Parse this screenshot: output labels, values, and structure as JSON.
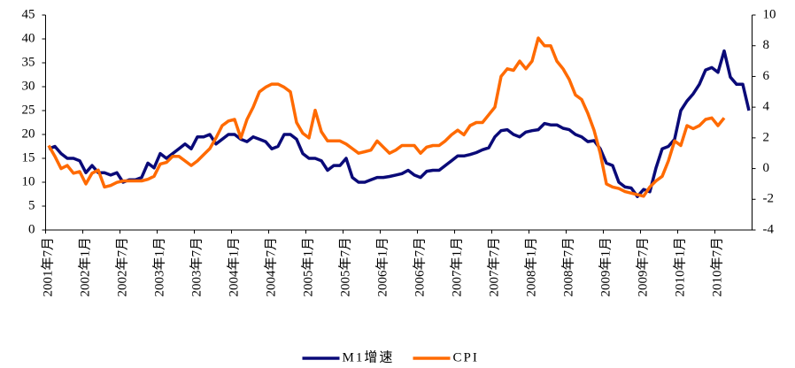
{
  "chart_data": {
    "type": "line",
    "categories": [
      "2001年7月",
      null,
      null,
      null,
      null,
      null,
      "2002年1月",
      null,
      null,
      null,
      null,
      null,
      "2002年7月",
      null,
      null,
      null,
      null,
      null,
      "2003年1月",
      null,
      null,
      null,
      null,
      null,
      "2003年7月",
      null,
      null,
      null,
      null,
      null,
      "2004年1月",
      null,
      null,
      null,
      null,
      null,
      "2004年7月",
      null,
      null,
      null,
      null,
      null,
      "2005年1月",
      null,
      null,
      null,
      null,
      null,
      "2005年7月",
      null,
      null,
      null,
      null,
      null,
      "2006年1月",
      null,
      null,
      null,
      null,
      null,
      "2006年7月",
      null,
      null,
      null,
      null,
      null,
      "2007年1月",
      null,
      null,
      null,
      null,
      null,
      "2007年7月",
      null,
      null,
      null,
      null,
      null,
      "2008年1月",
      null,
      null,
      null,
      null,
      null,
      "2008年7月",
      null,
      null,
      null,
      null,
      null,
      "2009年1月",
      null,
      null,
      null,
      null,
      null,
      "2009年7月",
      null,
      null,
      null,
      null,
      null,
      "2010年1月",
      null,
      null,
      null,
      null,
      null,
      "2010年7月",
      null,
      null,
      null,
      null,
      null
    ],
    "series": [
      {
        "name": "M1增速",
        "color": "#0a0a78",
        "values": [
          17,
          17.5,
          16,
          15,
          15,
          14.5,
          12,
          13.5,
          12,
          12,
          11.5,
          12,
          10,
          10.5,
          10.5,
          11,
          14,
          13,
          16,
          15,
          16,
          17,
          18,
          17,
          19.5,
          19.5,
          20,
          18,
          19,
          20,
          20,
          19,
          18.5,
          19.5,
          19,
          18.5,
          17,
          17.5,
          20,
          20,
          19,
          16,
          15,
          15,
          14.5,
          12.5,
          13.5,
          13.5,
          15,
          11,
          10,
          10,
          10.5,
          11,
          11,
          11.2,
          11.5,
          11.8,
          12.5,
          11.5,
          11,
          12.3,
          12.5,
          12.5,
          13.5,
          14.5,
          15.5,
          15.5,
          15.8,
          16.2,
          16.8,
          17.2,
          19.5,
          20.8,
          21,
          20,
          19.5,
          20.5,
          20.8,
          21,
          22.3,
          22,
          22,
          21.3,
          21,
          20,
          19.5,
          18.5,
          18.7,
          17,
          14,
          13.5,
          10,
          9,
          8.8,
          7,
          8.5,
          8,
          13,
          17,
          17.5,
          19,
          25,
          27,
          28.5,
          30.5,
          33.5,
          34,
          33,
          37.5,
          32,
          30.5,
          30.5,
          25
        ]
      },
      {
        "name": "CPI",
        "color": "#ff6a00",
        "axis": "y2",
        "values": [
          1.5,
          0.8,
          0,
          0.2,
          -0.3,
          -0.2,
          -1.0,
          -0.3,
          -0.1,
          -1.2,
          -1.1,
          -0.9,
          -0.8,
          -0.8,
          -0.8,
          -0.8,
          -0.7,
          -0.5,
          0.3,
          0.4,
          0.8,
          0.8,
          0.5,
          0.2,
          0.5,
          0.9,
          1.3,
          2.0,
          2.8,
          3.1,
          3.2,
          2.0,
          3.2,
          4.0,
          5.0,
          5.3,
          5.5,
          5.5,
          5.3,
          5.0,
          3.0,
          2.3,
          2.0,
          3.8,
          2.4,
          1.8,
          1.8,
          1.8,
          1.6,
          1.3,
          1.0,
          1.1,
          1.2,
          1.8,
          1.4,
          1.0,
          1.2,
          1.5,
          1.5,
          1.5,
          1.0,
          1.4,
          1.5,
          1.5,
          1.8,
          2.2,
          2.5,
          2.2,
          2.8,
          3.0,
          3.0,
          3.5,
          4.0,
          6.0,
          6.5,
          6.4,
          7.0,
          6.5,
          7.0,
          8.5,
          8.0,
          8.0,
          7.0,
          6.5,
          5.8,
          4.8,
          4.5,
          3.6,
          2.5,
          1.0,
          -1.0,
          -1.2,
          -1.3,
          -1.5,
          -1.6,
          -1.7,
          -1.8,
          -1.2,
          -0.8,
          -0.5,
          0.5,
          1.8,
          1.5,
          2.8,
          2.6,
          2.8,
          3.2,
          3.3,
          2.8,
          3.3,
          null,
          null,
          null,
          null
        ]
      }
    ],
    "ylim": [
      0,
      45
    ],
    "yticks": [
      0,
      5,
      10,
      15,
      20,
      25,
      30,
      35,
      40,
      45
    ],
    "y2lim": [
      -4,
      10
    ],
    "y2ticks": [
      -4,
      -2,
      0,
      2,
      4,
      6,
      8,
      10
    ],
    "legend": "bottom"
  }
}
